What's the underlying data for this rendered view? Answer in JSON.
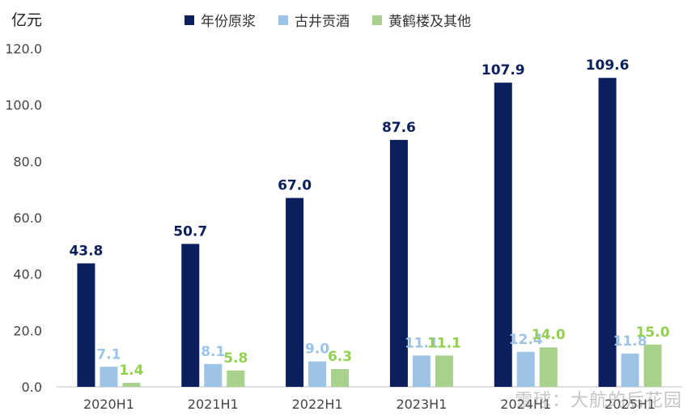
{
  "chart_data": {
    "type": "bar",
    "ylabel": "亿元",
    "categories": [
      "2020H1",
      "2021H1",
      "2022H1",
      "2023H1",
      "2024H1",
      "2025H1"
    ],
    "series": [
      {
        "name": "年份原浆",
        "color": "#0b1f5c",
        "values": [
          43.8,
          50.7,
          67.0,
          87.6,
          107.9,
          109.6
        ],
        "labels": [
          "43.8",
          "50.7",
          "67.0",
          "87.6",
          "107.9",
          "109.6"
        ]
      },
      {
        "name": "古井贡酒",
        "color": "#9dc3e6",
        "values": [
          7.1,
          8.1,
          9.0,
          11.1,
          12.4,
          11.8
        ],
        "labels": [
          "7.1",
          "8.1",
          "9.0",
          "11.1",
          "12.4",
          "11.8"
        ]
      },
      {
        "name": "黄鹤楼及其他",
        "color": "#a9d18e",
        "values": [
          1.4,
          5.8,
          6.3,
          11.1,
          14.0,
          15.0
        ],
        "labels": [
          "1.4",
          "5.8",
          "6.3",
          "11.1",
          "14.0",
          "15.0"
        ]
      }
    ],
    "ylim": [
      0,
      120
    ],
    "yticks": [
      "0.0",
      "20.0",
      "40.0",
      "60.0",
      "80.0",
      "100.0",
      "120.0"
    ],
    "label_colors": [
      "#0b1f5c",
      "#9dc3e6",
      "#92d050"
    ],
    "grid": false,
    "legend": "top"
  },
  "watermark": "雪球：大航的后花园"
}
